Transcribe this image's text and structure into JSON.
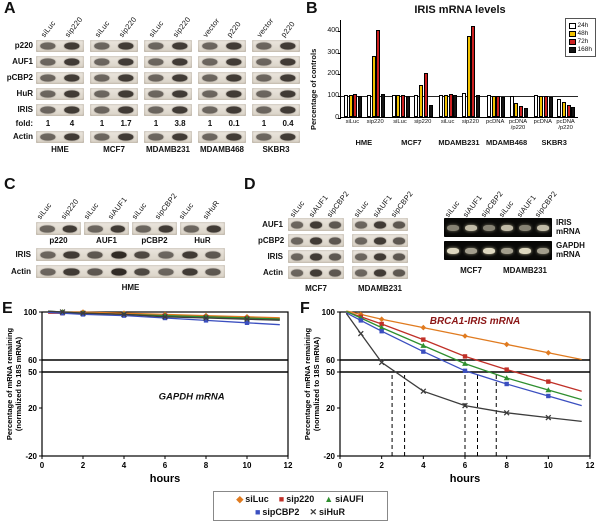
{
  "figure_type": "scientific-figure",
  "panels": {
    "A": {
      "panel_label": "A",
      "rows": [
        "p220",
        "AUF1",
        "pCBP2",
        "HuR",
        "IRIS"
      ],
      "fold_row": {
        "label": "fold:",
        "values": [
          [
            "1",
            "4"
          ],
          [
            "1",
            "1.7"
          ],
          [
            "1",
            "3.8"
          ],
          [
            "1",
            "0.1"
          ],
          [
            "1",
            "0.4"
          ]
        ]
      },
      "loading_row": "Actin",
      "groups": [
        {
          "cell": "HME",
          "lanes": [
            "siLuc",
            "sip220"
          ]
        },
        {
          "cell": "MCF7",
          "lanes": [
            "siLuc",
            "sip220"
          ]
        },
        {
          "cell": "MDAMB231",
          "lanes": [
            "siLuc",
            "sip220"
          ]
        },
        {
          "cell": "MDAMB468",
          "lanes": [
            "vector",
            "p220"
          ]
        },
        {
          "cell": "SKBR3",
          "lanes": [
            "vector",
            "p220"
          ]
        }
      ]
    },
    "B": {
      "panel_label": "B"
    },
    "C": {
      "panel_label": "C",
      "lane_labels": [
        "siLuc",
        "sip220",
        "siLuc",
        "siAUF1",
        "siLuc",
        "sipCBP2",
        "siLuc",
        "siHuR"
      ],
      "top_blot_labels": [
        "p220",
        "AUF1",
        "pCBP2",
        "HuR"
      ],
      "strip_rows": [
        "IRIS",
        "Actin"
      ],
      "cell_line": "HME"
    },
    "D": {
      "panel_label": "D",
      "row_labels": [
        "AUF1",
        "pCBP2",
        "IRIS",
        "Actin"
      ],
      "blot_sets": [
        {
          "cell": "MCF7",
          "lanes": [
            "siLuc",
            "siAUF1",
            "sipCBP2"
          ]
        },
        {
          "cell": "MDAMB231",
          "lanes": [
            "siLuc",
            "siAUF1",
            "sipCBP2"
          ]
        }
      ],
      "gel": {
        "lane_labels": [
          "siLuc",
          "siAUF1",
          "sipCBP2",
          "siLuc",
          "siAUF1",
          "sipCBP2"
        ],
        "row_labels": [
          "IRIS mRNA",
          "GAPDH mRNA"
        ],
        "cell_lines": [
          "MCF7",
          "MDAMB231"
        ]
      }
    },
    "E": {
      "panel_label": "E"
    },
    "F": {
      "panel_label": "F"
    }
  },
  "chart_data": [
    {
      "id": "B",
      "type": "bar",
      "title": "IRIS mRNA levels",
      "ylabel": "Percentage of controls",
      "ylim": [
        0,
        450
      ],
      "yticks": [
        0,
        100,
        200,
        300,
        400
      ],
      "control_line": 100,
      "series": [
        "24h",
        "48h",
        "72h",
        "168h"
      ],
      "series_colors": [
        "#ffffff",
        "#f2c200",
        "#cc2020",
        "#141414"
      ],
      "cell_lines": [
        "HME",
        "MCF7",
        "MDAMB231",
        "MDAMB468",
        "SKBR3"
      ],
      "groups": [
        {
          "label": [
            "siLuc"
          ],
          "values": [
            100,
            100,
            105,
            95
          ]
        },
        {
          "label": [
            "sip220"
          ],
          "values": [
            100,
            280,
            400,
            105
          ]
        },
        {
          "label": [
            "siLuc"
          ],
          "values": [
            100,
            100,
            100,
            95
          ]
        },
        {
          "label": [
            "sip220"
          ],
          "values": [
            100,
            145,
            200,
            55
          ]
        },
        {
          "label": [
            "siLuc"
          ],
          "values": [
            100,
            100,
            105,
            100
          ]
        },
        {
          "label": [
            "sip220"
          ],
          "values": [
            110,
            370,
            420,
            100
          ]
        },
        {
          "label": [
            "pcDNA"
          ],
          "values": [
            100,
            95,
            95,
            90
          ]
        },
        {
          "label": [
            "pcDNA",
            "/p220"
          ],
          "values": [
            95,
            65,
            50,
            40
          ]
        },
        {
          "label": [
            "pcDNA"
          ],
          "values": [
            100,
            95,
            95,
            90
          ]
        },
        {
          "label": [
            "pcDNA",
            "/p220"
          ],
          "values": [
            85,
            70,
            55,
            45
          ]
        }
      ]
    },
    {
      "id": "E",
      "type": "line",
      "annotation": {
        "text": "GAPDH mRNA",
        "x": 7.3,
        "y": 27
      },
      "xlabel": "hours",
      "ylabel_lines": [
        "Percentage of mRNA remaining",
        "(normalized to 18S mRNA)"
      ],
      "xlim": [
        0,
        12
      ],
      "xticks": [
        0,
        2,
        4,
        6,
        8,
        10,
        12
      ],
      "ylim": [
        -20,
        100
      ],
      "yticks": [
        100,
        60,
        50,
        20,
        -20
      ],
      "grid_y": [
        60,
        50
      ],
      "x": [
        1,
        2,
        4,
        6,
        8,
        10
      ],
      "series": [
        {
          "name": "siLuc",
          "color": "#e07b20",
          "marker": "diamond",
          "values": [
            100,
            100,
            99,
            98,
            97,
            96
          ]
        },
        {
          "name": "sip220",
          "color": "#c03028",
          "marker": "square",
          "values": [
            99,
            99,
            98,
            97,
            96,
            95
          ]
        },
        {
          "name": "siAUFI",
          "color": "#2f8f2f",
          "marker": "triangle",
          "values": [
            100,
            99,
            98,
            97,
            96,
            95
          ]
        },
        {
          "name": "sipCBP2",
          "color": "#3b4fc0",
          "marker": "square",
          "values": [
            99,
            98,
            97,
            95,
            93,
            91
          ]
        },
        {
          "name": "siHuR",
          "color": "#3c3c3c",
          "marker": "x",
          "values": [
            100,
            99,
            98,
            96,
            95,
            94
          ]
        }
      ]
    },
    {
      "id": "F",
      "type": "line",
      "title": {
        "text": "BRCA1-IRIS mRNA",
        "color": "#8b1616"
      },
      "xlabel": "hours",
      "ylabel_lines": [
        "Percentage of mRNA remaining",
        "(normalized to 18S mRNA)"
      ],
      "xlim": [
        0,
        12
      ],
      "xticks": [
        0,
        2,
        4,
        6,
        8,
        10,
        12
      ],
      "ylim": [
        -20,
        100
      ],
      "yticks": [
        100,
        60,
        50,
        20,
        -20
      ],
      "grid_y": [
        60,
        50
      ],
      "half_life_x": [
        2.5,
        3.1,
        6.0,
        6.6,
        7.5
      ],
      "x": [
        1,
        2,
        4,
        6,
        8,
        10
      ],
      "series": [
        {
          "name": "siLuc",
          "color": "#e07b20",
          "marker": "diamond",
          "values": [
            98,
            94,
            87,
            80,
            73,
            66
          ]
        },
        {
          "name": "sip220",
          "color": "#c03028",
          "marker": "square",
          "values": [
            96,
            90,
            77,
            63,
            52,
            42
          ]
        },
        {
          "name": "siAUFI",
          "color": "#2f8f2f",
          "marker": "triangle",
          "values": [
            95,
            87,
            72,
            57,
            45,
            35
          ]
        },
        {
          "name": "sipCBP2",
          "color": "#3b4fc0",
          "marker": "square",
          "values": [
            93,
            84,
            67,
            51,
            40,
            30
          ]
        },
        {
          "name": "siHuR",
          "color": "#3c3c3c",
          "marker": "x",
          "values": [
            82,
            58,
            34,
            22,
            16,
            12
          ]
        }
      ]
    }
  ],
  "legend": {
    "items": [
      {
        "label": "siLuc",
        "symbol": "◆",
        "color": "#e07b20"
      },
      {
        "label": "sip220",
        "symbol": "■",
        "color": "#c03028"
      },
      {
        "label": "siAUFI",
        "symbol": "▲",
        "color": "#2f8f2f"
      },
      {
        "label": "sipCBP2",
        "symbol": "■",
        "color": "#3b4fc0"
      },
      {
        "label": "siHuR",
        "symbol": "✕",
        "color": "#3c3c3c"
      }
    ]
  }
}
